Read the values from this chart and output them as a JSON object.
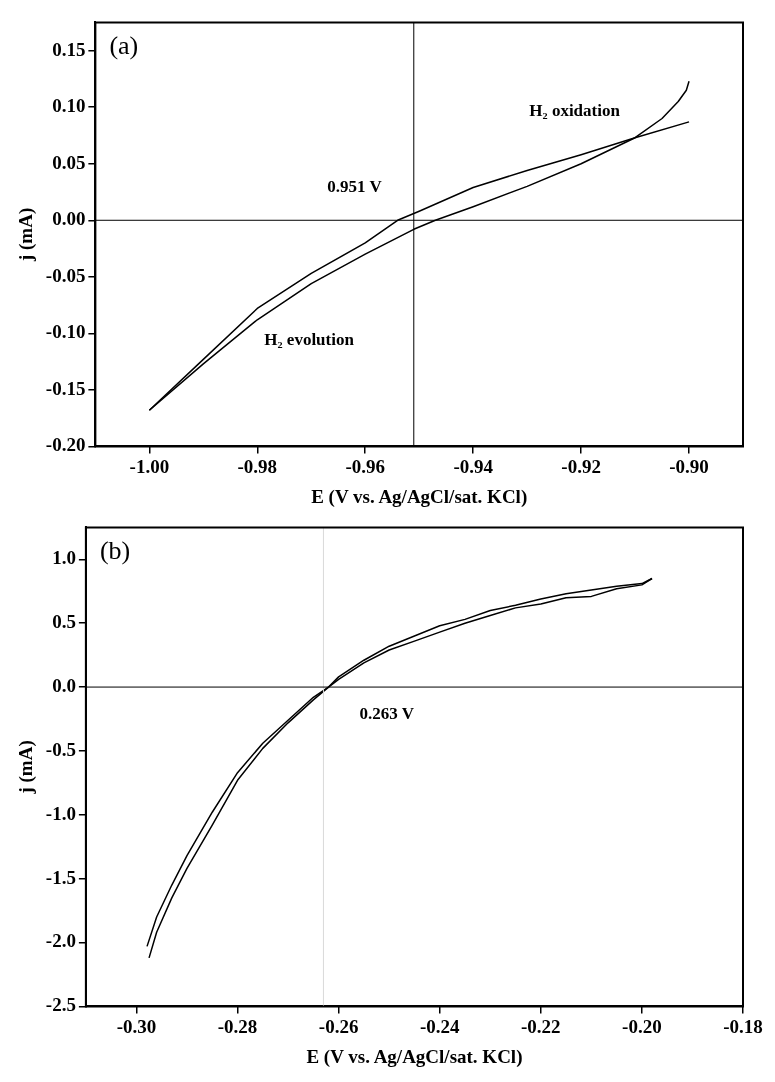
{
  "chart_data": [
    {
      "type": "line",
      "xlabel": "E (V vs. Ag/AgCl/sat. KCl)",
      "ylabel": "j (mA)",
      "xlim": [
        -1.01,
        -0.89
      ],
      "xticks": [
        {
          "value": -1.0,
          "label": "-1.00"
        },
        {
          "value": -0.98,
          "label": "-0.98"
        },
        {
          "value": -0.96,
          "label": "-0.96"
        },
        {
          "value": -0.94,
          "label": "-0.94"
        },
        {
          "value": -0.92,
          "label": "-0.92"
        },
        {
          "value": -0.9,
          "label": "-0.90"
        }
      ],
      "ylim": [
        -0.2,
        0.175
      ],
      "yticks": [
        {
          "value": -0.2,
          "label": "-0.20"
        },
        {
          "value": -0.15,
          "label": "-0.15"
        },
        {
          "value": -0.1,
          "label": "-0.10"
        },
        {
          "value": -0.05,
          "label": "-0.05"
        },
        {
          "value": 0,
          "label": "0.00"
        },
        {
          "value": 0.05,
          "label": "0.05"
        },
        {
          "value": 0.1,
          "label": "0.10"
        },
        {
          "value": 0.15,
          "label": "0.15"
        }
      ],
      "grid": false,
      "legend": false,
      "marker": "none",
      "line_style": "solid",
      "series": [
        {
          "color": "#000000",
          "x": [
            -1.0,
            -0.99,
            -0.98,
            -0.97,
            -0.96,
            -0.954,
            -0.95,
            -0.94,
            -0.93,
            -0.92,
            -0.91,
            -0.9
          ],
          "values": [
            -0.168,
            -0.123,
            -0.078,
            -0.047,
            -0.02,
            0,
            0.008,
            0.029,
            0.044,
            0.058,
            0.073,
            0.087
          ]
        },
        {
          "color": "#000000",
          "x": [
            -1.0,
            -0.99,
            -0.98,
            -0.97,
            -0.96,
            -0.951,
            -0.947,
            -0.94,
            -0.93,
            -0.92,
            -0.91,
            -0.905,
            -0.902,
            -0.9005,
            -0.9
          ],
          "values": [
            -0.168,
            -0.127,
            -0.088,
            -0.056,
            -0.03,
            -0.008,
            0,
            0.012,
            0.03,
            0.05,
            0.073,
            0.09,
            0.105,
            0.115,
            0.123
          ]
        }
      ],
      "ref_lines": [
        {
          "axis": "x",
          "value": -0.951,
          "color": "#000000"
        },
        {
          "axis": "y",
          "value": 0,
          "color": "#000000"
        }
      ],
      "annotations": [
        "(a)",
        "0.951 V",
        "H₂ oxidation",
        "H₂ evolution"
      ]
    },
    {
      "type": "line",
      "xlabel": "E (V vs. Ag/AgCl/sat. KCl)",
      "ylabel": "j (mA)",
      "xlim": [
        -0.31,
        -0.18
      ],
      "xticks": [
        {
          "value": -0.3,
          "label": "-0.30"
        },
        {
          "value": -0.28,
          "label": "-0.28"
        },
        {
          "value": -0.26,
          "label": "-0.26"
        },
        {
          "value": -0.24,
          "label": "-0.24"
        },
        {
          "value": -0.22,
          "label": "-0.22"
        },
        {
          "value": -0.2,
          "label": "-0.20"
        },
        {
          "value": -0.18,
          "label": "-0.18"
        }
      ],
      "ylim": [
        -2.5,
        1.25
      ],
      "yticks": [
        {
          "value": -2.5,
          "label": "-2.5"
        },
        {
          "value": -2,
          "label": "-2.0"
        },
        {
          "value": -1.5,
          "label": "-1.5"
        },
        {
          "value": -1,
          "label": "-1.0"
        },
        {
          "value": -0.5,
          "label": "-0.5"
        },
        {
          "value": 0,
          "label": "0.0"
        },
        {
          "value": 0.5,
          "label": "0.5"
        },
        {
          "value": 1,
          "label": "1.0"
        }
      ],
      "grid": false,
      "legend": false,
      "marker": "none",
      "line_style": "solid",
      "series": [
        {
          "color": "#000000",
          "x": [
            -0.2979,
            -0.296,
            -0.293,
            -0.29,
            -0.285,
            -0.28,
            -0.275,
            -0.27,
            -0.265,
            -0.262,
            -0.26,
            -0.255,
            -0.25,
            -0.245,
            -0.24,
            -0.235,
            -0.23,
            -0.225,
            -0.22,
            -0.215,
            -0.21,
            -0.205,
            -0.2,
            -0.198
          ],
          "values": [
            -2.03,
            -1.8,
            -1.55,
            -1.32,
            -0.98,
            -0.67,
            -0.44,
            -0.26,
            -0.08,
            0,
            0.08,
            0.21,
            0.32,
            0.4,
            0.48,
            0.53,
            0.6,
            0.64,
            0.69,
            0.73,
            0.76,
            0.79,
            0.81,
            0.85
          ]
        },
        {
          "color": "#000000",
          "x": [
            -0.2975,
            -0.296,
            -0.293,
            -0.29,
            -0.285,
            -0.28,
            -0.275,
            -0.27,
            -0.265,
            -0.262,
            -0.26,
            -0.255,
            -0.25,
            -0.245,
            -0.24,
            -0.235,
            -0.23,
            -0.225,
            -0.22,
            -0.215,
            -0.21,
            -0.205,
            -0.2,
            -0.198
          ],
          "values": [
            -2.12,
            -1.92,
            -1.65,
            -1.42,
            -1.08,
            -0.73,
            -0.48,
            -0.28,
            -0.1,
            0,
            0.06,
            0.19,
            0.29,
            0.36,
            0.43,
            0.5,
            0.56,
            0.62,
            0.65,
            0.7,
            0.71,
            0.77,
            0.8,
            0.85
          ]
        }
      ],
      "ref_lines": [
        {
          "axis": "x",
          "value": -0.263,
          "color": "#d9d9d9"
        },
        {
          "axis": "y",
          "value": 0,
          "color": "#000000"
        }
      ],
      "annotations": [
        "(b)",
        "0.263 V"
      ]
    }
  ]
}
